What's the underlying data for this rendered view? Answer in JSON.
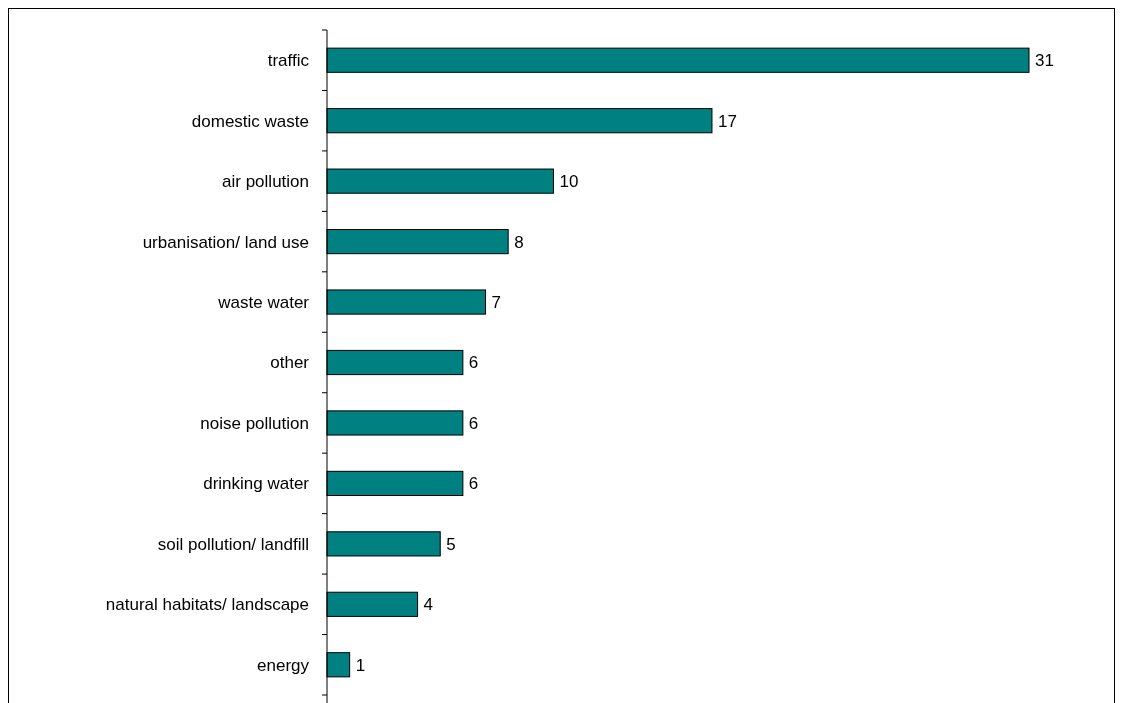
{
  "chart_data": {
    "type": "bar",
    "orientation": "horizontal",
    "categories": [
      "traffic",
      "domestic waste",
      "air pollution",
      "urbanisation/ land use",
      "waste water",
      "other ",
      "noise pollution",
      "drinking water",
      "soil pollution/ landfill",
      "natural habitats/ landscape",
      "energy"
    ],
    "values": [
      31,
      17,
      10,
      8,
      7,
      6,
      6,
      6,
      5,
      4,
      1
    ],
    "color": "#008080",
    "data_labels": true
  }
}
